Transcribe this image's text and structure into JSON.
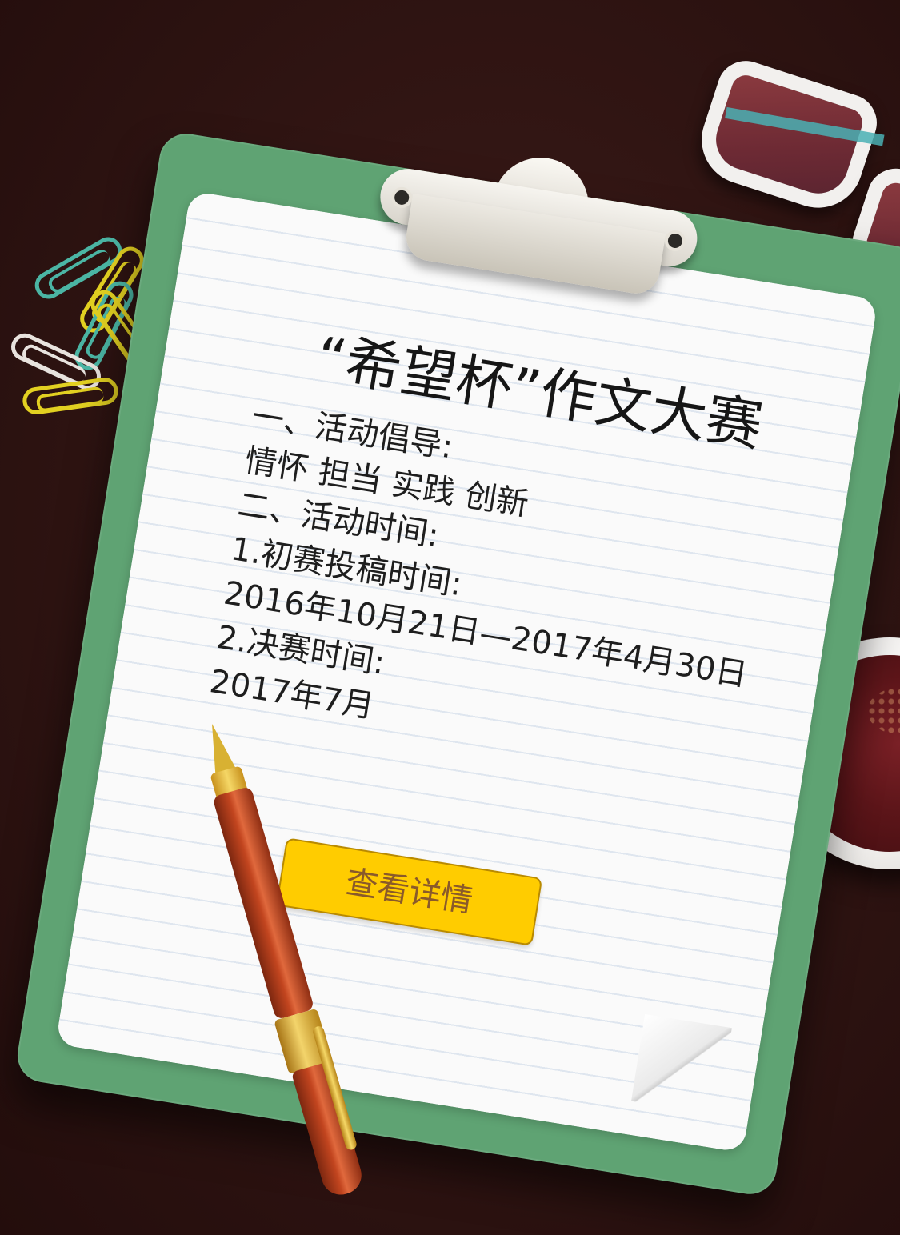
{
  "page": {
    "title": "“希望杯”作文大赛",
    "lines": {
      "section1_heading": "一、活动倡导:",
      "section1_values": "情怀 担当 实践 创新",
      "section2_heading": "二、活动时间:",
      "item1_label": "1.初赛投稿时间:",
      "item1_value": "2016年10月21日—2017年4月30日",
      "item2_label": "2.决赛时间:",
      "item2_value": "2017年7月"
    },
    "button": {
      "label": "查看详情"
    }
  },
  "icons": [
    "clipboard-icon",
    "glasses-icon",
    "coffee-cup-icon",
    "pen-icon",
    "paper-clip-icon"
  ],
  "colors": {
    "background": "#2f1412",
    "board": "#5fa373",
    "paper": "#fafafa",
    "button_bg": "#ffcc00",
    "button_text": "#8a5a2a"
  }
}
